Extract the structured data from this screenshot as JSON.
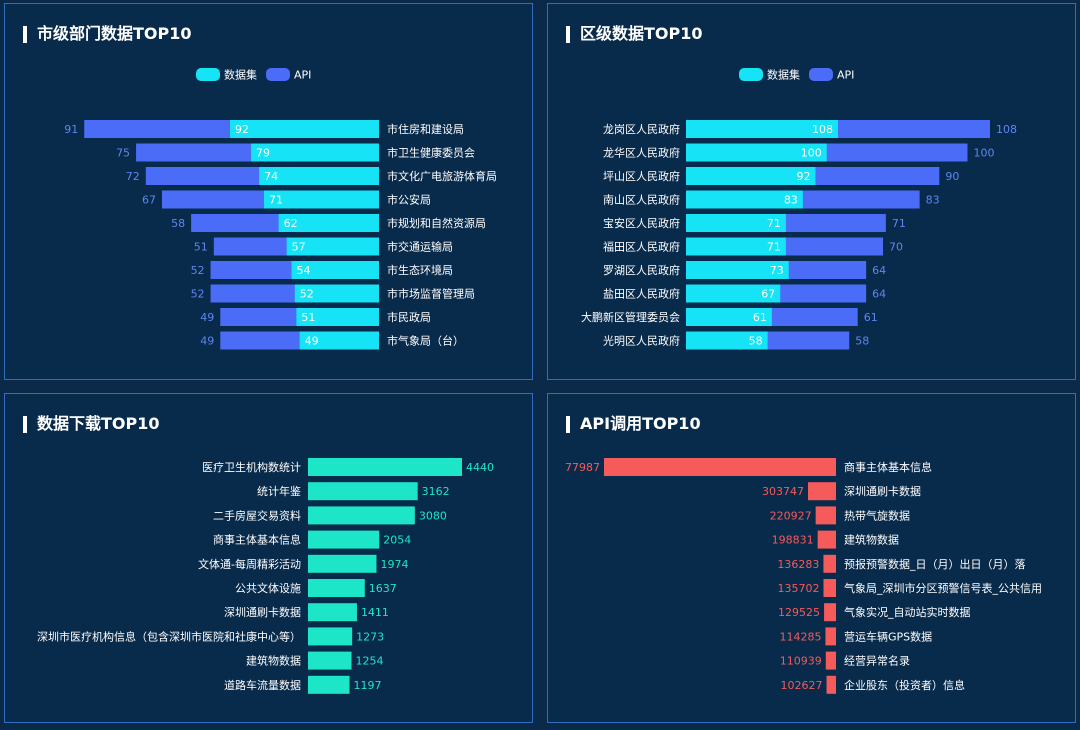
{
  "colors": {
    "dataset": "#16e3f5",
    "api": "#4a6cf7",
    "download": "#1de6c8",
    "apiCall": "#f55b5b",
    "label": "#ffffff"
  },
  "chart_data": [
    {
      "title": "市级部门数据TOP10",
      "type": "bar",
      "legend": [
        "数据集",
        "API"
      ],
      "categories": [
        "市住房和建设局",
        "市卫生健康委员会",
        "市文化广电旅游体育局",
        "市公安局",
        "市规划和自然资源局",
        "市交通运输局",
        "市生态环境局",
        "市市场监督管理局",
        "市民政局",
        "市气象局（台）"
      ],
      "series": [
        {
          "name": "数据集",
          "values": [
            92,
            79,
            74,
            71,
            62,
            57,
            54,
            52,
            51,
            49
          ]
        },
        {
          "name": "API",
          "values": [
            91,
            75,
            72,
            67,
            58,
            51,
            52,
            52,
            49,
            49
          ]
        }
      ]
    },
    {
      "title": "区级数据TOP10",
      "type": "bar",
      "legend": [
        "数据集",
        "API"
      ],
      "categories": [
        "龙岗区人民政府",
        "龙华区人民政府",
        "坪山区人民政府",
        "南山区人民政府",
        "宝安区人民政府",
        "福田区人民政府",
        "罗湖区人民政府",
        "盐田区人民政府",
        "大鹏新区管理委员会",
        "光明区人民政府"
      ],
      "series": [
        {
          "name": "数据集",
          "values": [
            108,
            100,
            92,
            83,
            71,
            71,
            73,
            67,
            61,
            58
          ]
        },
        {
          "name": "API",
          "values": [
            108,
            100,
            90,
            83,
            71,
            70,
            64,
            64,
            61,
            58
          ]
        }
      ]
    },
    {
      "title": "数据下载TOP10",
      "type": "bar",
      "categories": [
        "医疗卫生机构数统计",
        "统计年鉴",
        "二手房屋交易资料",
        "商事主体基本信息",
        "文体通-每周精彩活动",
        "公共文体设施",
        "深圳通刷卡数据",
        "深圳市医疗机构信息（包含深圳市医院和社康中心等）",
        "建筑物数据",
        "道路车流量数据"
      ],
      "values": [
        4440,
        3162,
        3080,
        2054,
        1974,
        1637,
        1411,
        1273,
        1254,
        1197
      ]
    },
    {
      "title": "API调用TOP10",
      "type": "bar",
      "categories": [
        "商事主体基本信息",
        "深圳通刷卡数据",
        "热带气旋数据",
        "建筑物数据",
        "预报预警数据_日（月）出日（月）落",
        "气象局_深圳市分区预警信号表_公共信用",
        "气象实况_自动站实时数据",
        "营运车辆GPS数据",
        "经营异常名录",
        "企业股东（投资者）信息"
      ],
      "values": [
        77987,
        303747,
        220927,
        198831,
        136283,
        135702,
        129525,
        114285,
        110939,
        102627
      ]
    }
  ]
}
